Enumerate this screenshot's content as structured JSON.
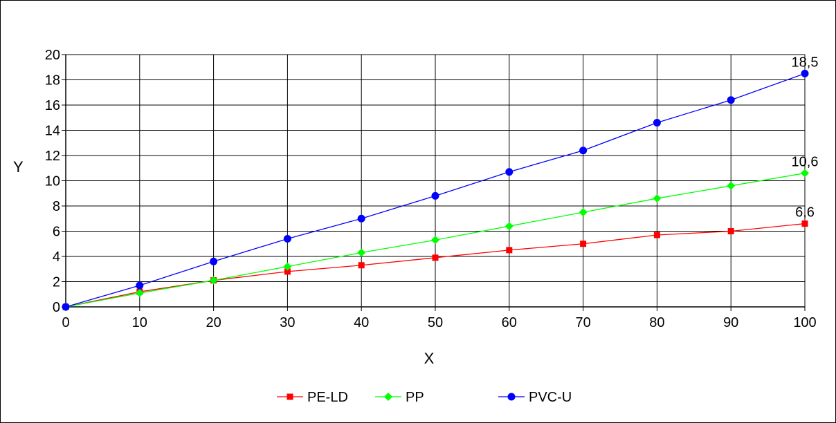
{
  "chart_data": {
    "type": "line",
    "xlabel": "X",
    "ylabel": "Y",
    "x": [
      0,
      10,
      20,
      30,
      40,
      50,
      60,
      70,
      80,
      90,
      100
    ],
    "xlim": [
      0,
      100
    ],
    "ylim": [
      0,
      20
    ],
    "x_ticks": [
      "0",
      "10",
      "20",
      "30",
      "40",
      "50",
      "60",
      "70",
      "80",
      "90",
      "100"
    ],
    "y_ticks": [
      "0",
      "2",
      "4",
      "6",
      "8",
      "10",
      "12",
      "14",
      "16",
      "18",
      "20"
    ],
    "grid": true,
    "legend_position": "bottom",
    "series": [
      {
        "name": "PE-LD",
        "color": "#ff0000",
        "marker": "square",
        "values": [
          0,
          1.2,
          2.1,
          2.8,
          3.3,
          3.9,
          4.5,
          5.0,
          5.7,
          6.0,
          6.6
        ],
        "end_label": "6,6"
      },
      {
        "name": "PP",
        "color": "#00ff00",
        "marker": "diamond",
        "values": [
          0,
          1.1,
          2.1,
          3.2,
          4.3,
          5.3,
          6.4,
          7.5,
          8.6,
          9.6,
          10.6
        ],
        "end_label": "10,6"
      },
      {
        "name": "PVC-U",
        "color": "#0000ff",
        "marker": "circle",
        "values": [
          0,
          1.7,
          3.6,
          5.4,
          7.0,
          8.8,
          10.7,
          12.4,
          14.6,
          16.4,
          18.5
        ],
        "end_label": "18,5"
      }
    ]
  }
}
